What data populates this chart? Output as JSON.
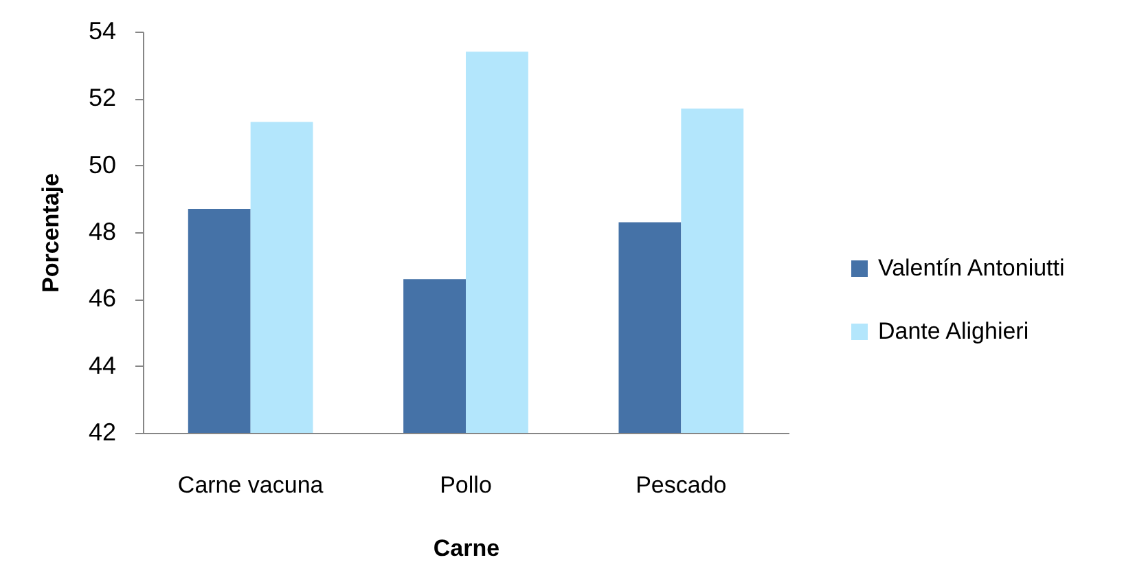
{
  "chart_data": {
    "type": "bar",
    "xlabel": "Carne",
    "ylabel": "Porcentaje",
    "categories": [
      "Carne vacuna",
      "Pollo",
      "Pescado"
    ],
    "series": [
      {
        "name": "Valentín Antoniutti",
        "color": "#4572a7",
        "values": [
          48.7,
          46.6,
          48.3
        ]
      },
      {
        "name": "Dante Alighieri",
        "color": "#b3e6fc",
        "values": [
          51.3,
          53.4,
          51.7
        ]
      }
    ],
    "ylim": [
      42,
      54
    ],
    "yticks": [
      42,
      44,
      46,
      48,
      50,
      52,
      54
    ],
    "grid": false,
    "legend": "right"
  }
}
